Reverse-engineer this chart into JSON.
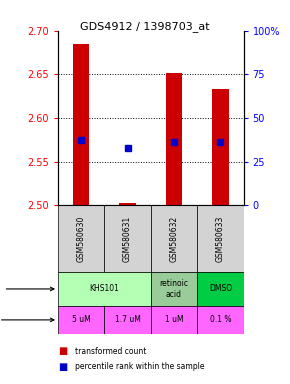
{
  "title": "GDS4912 / 1398703_at",
  "samples": [
    "GSM580630",
    "GSM580631",
    "GSM580632",
    "GSM580633"
  ],
  "bar_base": 2.5,
  "bar_tops": [
    2.685,
    2.502,
    2.652,
    2.633
  ],
  "blue_dot_values": [
    2.575,
    2.565,
    2.572,
    2.572
  ],
  "ylim": [
    2.5,
    2.7
  ],
  "ylim_right": [
    0,
    100
  ],
  "yticks_left": [
    2.5,
    2.55,
    2.6,
    2.65,
    2.7
  ],
  "yticks_right": [
    0,
    25,
    50,
    75,
    100
  ],
  "doses": [
    "5 uM",
    "1.7 uM",
    "1 uM",
    "0.1 %"
  ],
  "dose_color": "#ff66ff",
  "sample_color": "#d3d3d3",
  "bar_color": "#cc0000",
  "dot_color": "#0000cc",
  "legend_bar_color": "#cc0000",
  "legend_dot_color": "#0000cc",
  "agent_spans": [
    {
      "start": 0,
      "end": 2,
      "label": "KHS101",
      "color": "#b3ffb3"
    },
    {
      "start": 2,
      "end": 3,
      "label": "retinoic\nacid",
      "color": "#99cc99"
    },
    {
      "start": 3,
      "end": 4,
      "label": "DMSO",
      "color": "#00cc44"
    }
  ]
}
